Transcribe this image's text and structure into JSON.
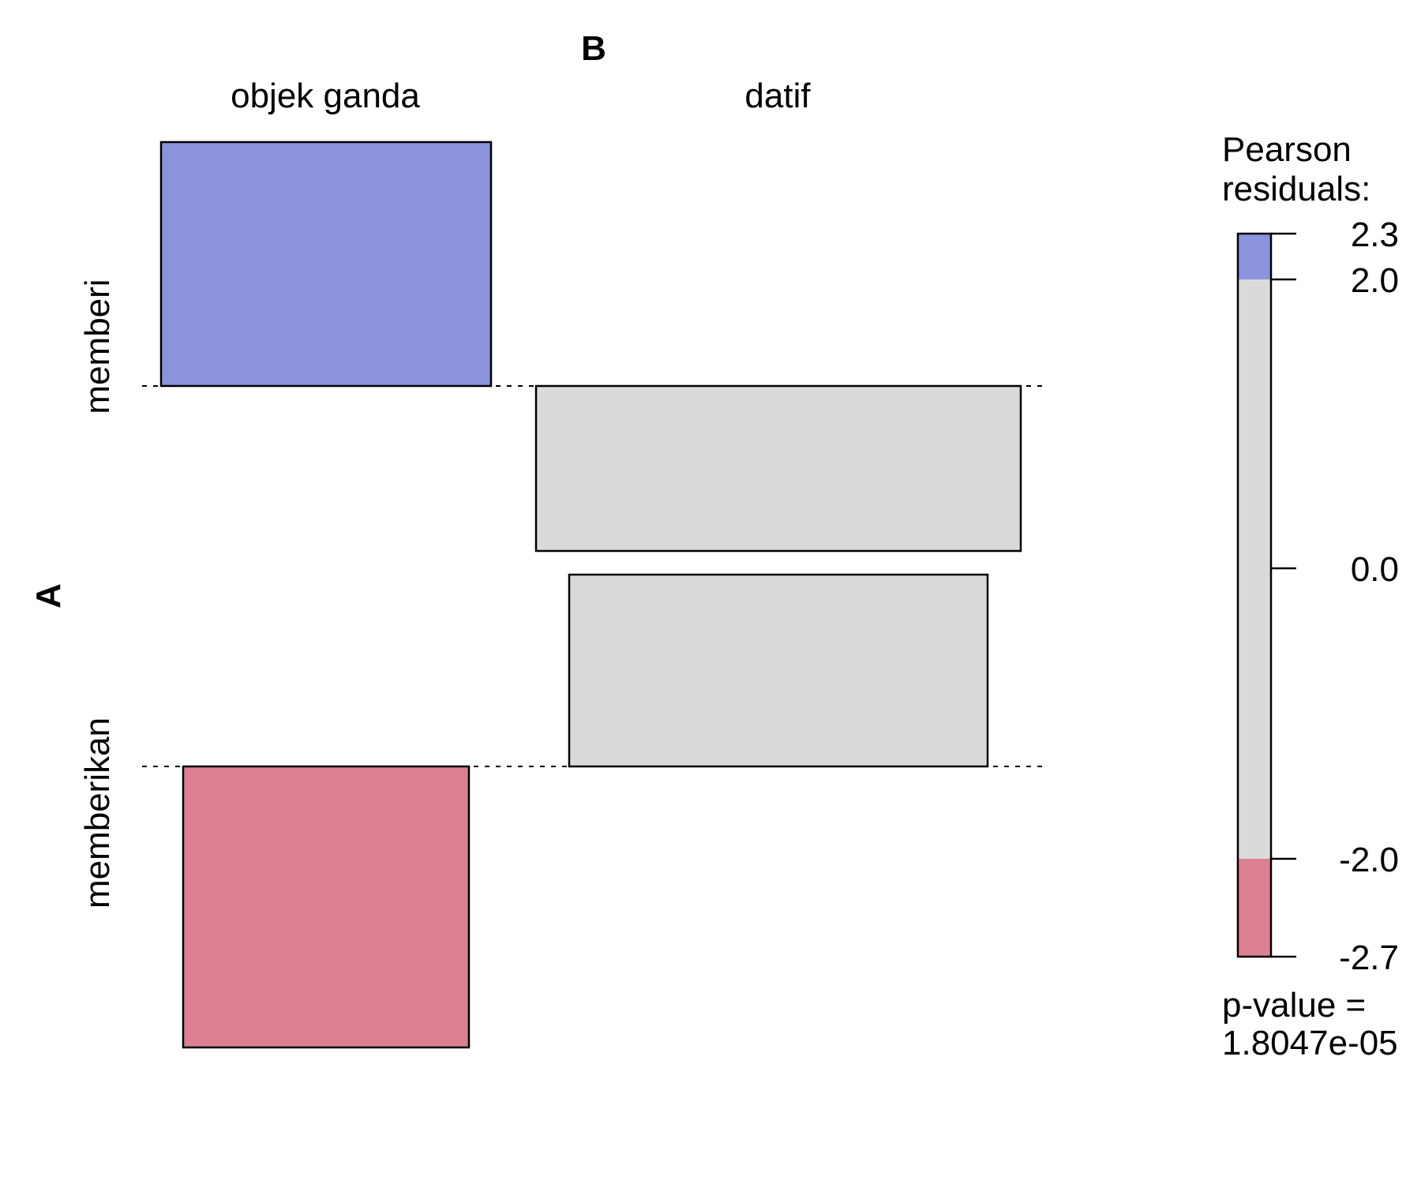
{
  "chart_data": {
    "type": "assocplot",
    "x_variable": "B",
    "y_variable": "A",
    "columns": [
      "objek ganda",
      "datif"
    ],
    "rows": [
      "memberi",
      "memberikan"
    ],
    "cells": [
      {
        "row": "memberi",
        "column": "objek ganda",
        "residual": 2.3,
        "fill": "#8b93dc"
      },
      {
        "row": "memberi",
        "column": "datif",
        "residual": -1.4,
        "fill": "#dadada"
      },
      {
        "row": "memberikan",
        "column": "objek ganda",
        "residual": -2.7,
        "fill": "#dc7f90"
      },
      {
        "row": "memberikan",
        "column": "datif",
        "residual": 1.7,
        "fill": "#dadada"
      }
    ],
    "legend": {
      "title_line1": "Pearson",
      "title_line2": "residuals:",
      "ticks": [
        "2.3",
        "2.0",
        "0.0",
        "-2.0",
        "-2.7"
      ],
      "tick_values": [
        2.3,
        2.0,
        0.0,
        -2.0,
        -2.7
      ],
      "range": [
        -2.7,
        2.3
      ],
      "bands": [
        {
          "from": 2.0,
          "to": 2.3,
          "fill": "#8b93dc"
        },
        {
          "from": -2.0,
          "to": 2.0,
          "fill": "#dadada"
        },
        {
          "from": -2.7,
          "to": -2.0,
          "fill": "#dc7f90"
        }
      ],
      "pvalue_line1": "p-value =",
      "pvalue_line2": "1.8047e-05"
    }
  }
}
